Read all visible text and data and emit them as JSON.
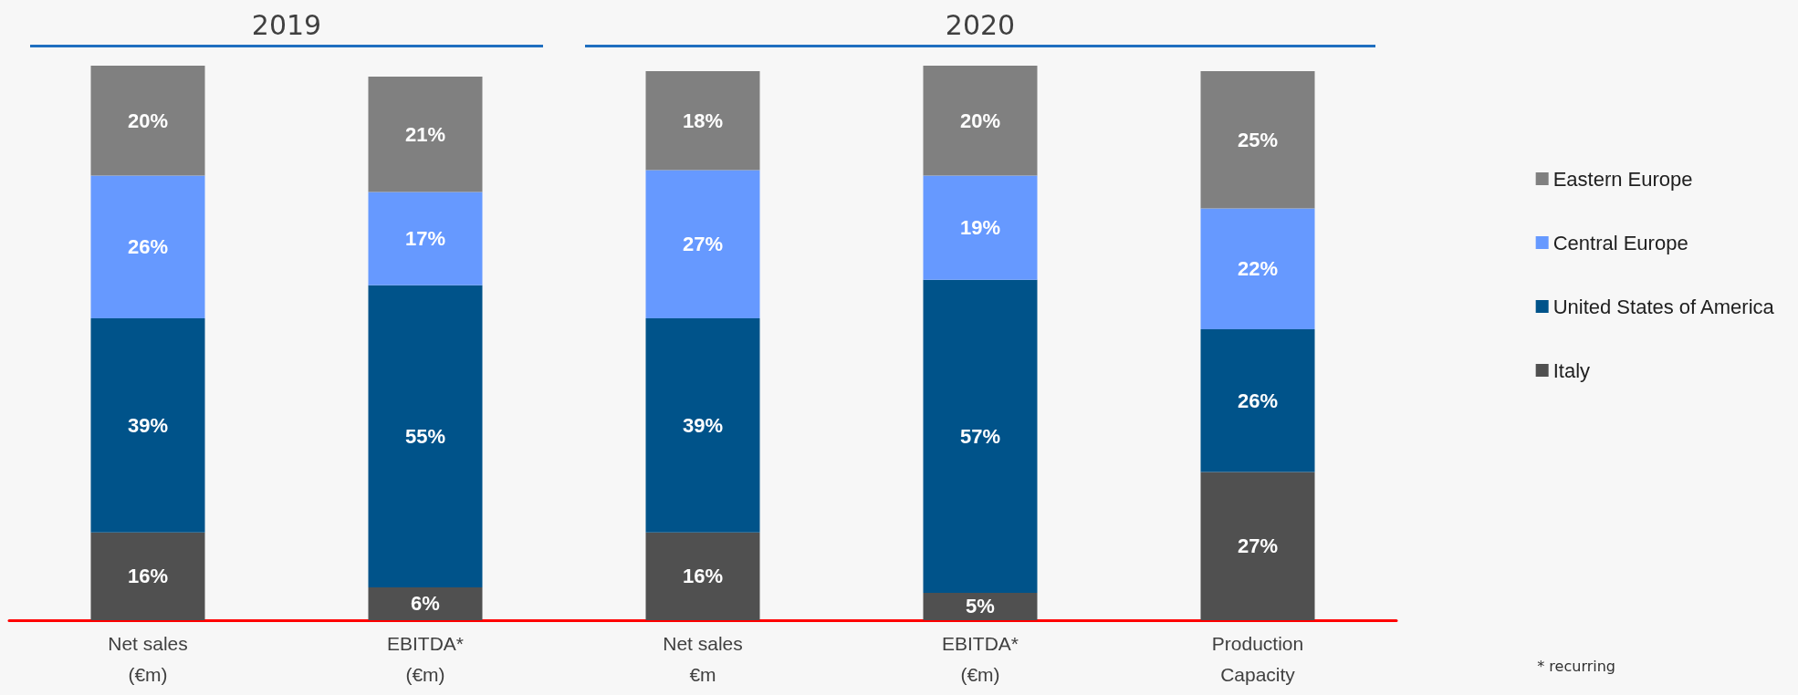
{
  "chart_data": {
    "type": "bar",
    "stacked": true,
    "data_labels": true,
    "legend": "right",
    "grid": false,
    "categories": [
      "Net sales\n(€m)",
      "EBITDA*\n(€m)",
      "Net sales\n€m",
      "EBITDA*\n(€m)",
      "Production\nCapacity"
    ],
    "series": [
      {
        "name": "Italy",
        "color": "#505050",
        "values": [
          16,
          6,
          16,
          5,
          27
        ],
        "value_labels": [
          "16%",
          "6%",
          "16%",
          "5%",
          "27%"
        ]
      },
      {
        "name": "United States of America",
        "color": "#00538a",
        "values": [
          39,
          55,
          39,
          57,
          26
        ],
        "value_labels": [
          "39%",
          "55%",
          "39%",
          "57%",
          "26%"
        ]
      },
      {
        "name": "Central Europe",
        "color": "#6699ff",
        "values": [
          26,
          17,
          27,
          19,
          22
        ],
        "value_labels": [
          "26%",
          "17%",
          "27%",
          "19%",
          "22%"
        ]
      },
      {
        "name": "Eastern Europe",
        "color": "#808080",
        "values": [
          20,
          21,
          18,
          20,
          25
        ],
        "value_labels": [
          "20%",
          "21%",
          "18%",
          "20%",
          "25%"
        ]
      }
    ],
    "annotations": [
      "2019",
      "2020",
      "* recurring"
    ]
  }
}
